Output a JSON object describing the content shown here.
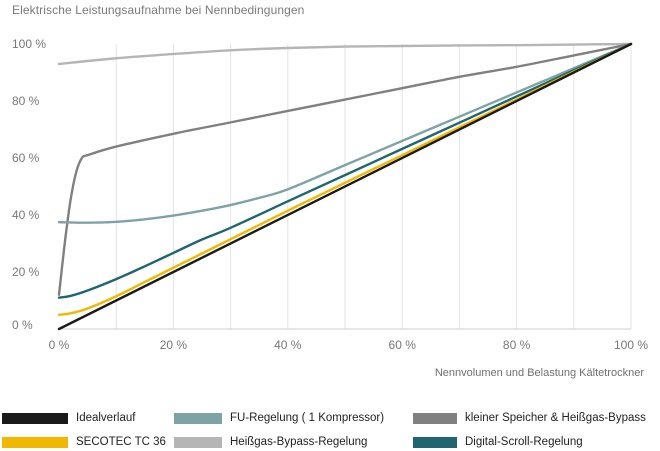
{
  "chart_data": {
    "type": "line",
    "title": "Elektrische Leistungsaufnahme bei Nennbedingungen",
    "xlabel": "Nennvolumen und Belastung Kältetrockner",
    "ylabel": "",
    "xlim": [
      0,
      100
    ],
    "ylim": [
      0,
      100
    ],
    "grid": "vertical",
    "x_ticks": [
      "0 %",
      "20 %",
      "40 %",
      "60 %",
      "80 %",
      "100 %"
    ],
    "y_ticks": [
      "0 %",
      "20 %",
      "40 %",
      "60 %",
      "80 %",
      "100 %"
    ],
    "x_tick_values": [
      0,
      20,
      40,
      60,
      80,
      100
    ],
    "y_tick_values": [
      0,
      20,
      40,
      60,
      80,
      100
    ],
    "series": [
      {
        "name": "Heißgas-Bypass-Regelung",
        "color": "#b5b5b5",
        "x": [
          0,
          10,
          20,
          30,
          40,
          50,
          60,
          70,
          80,
          90,
          100
        ],
        "y": [
          93,
          95,
          96.5,
          97.8,
          98.6,
          99.1,
          99.3,
          99.5,
          99.6,
          99.8,
          100
        ]
      },
      {
        "name": "kleiner Speicher & Heißgas-Bypass",
        "color": "#808080",
        "x": [
          0,
          1,
          2,
          3,
          4,
          5,
          10,
          20,
          30,
          40,
          50,
          60,
          70,
          80,
          90,
          100
        ],
        "y": [
          12,
          30,
          45,
          55,
          60,
          61,
          64,
          68.5,
          72.5,
          76.5,
          80.5,
          84.5,
          88.5,
          92,
          96,
          100
        ]
      },
      {
        "name": "FU-Regelung ( 1 Kompressor)",
        "color": "#7ea3a5",
        "x": [
          0,
          5,
          10,
          15,
          20,
          25,
          30,
          35,
          40,
          50,
          60,
          70,
          80,
          90,
          100
        ],
        "y": [
          37.5,
          37.3,
          37.6,
          38.5,
          39.8,
          41.5,
          43.5,
          46,
          49,
          57.5,
          66,
          74.5,
          83,
          91.5,
          100
        ]
      },
      {
        "name": "Digital-Scroll-Regelung",
        "color": "#1f6670",
        "x": [
          0,
          2,
          5,
          10,
          15,
          20,
          25,
          30,
          40,
          50,
          60,
          70,
          80,
          90,
          100
        ],
        "y": [
          11,
          11.6,
          13.5,
          17.5,
          22,
          26.7,
          31.4,
          35.5,
          44.8,
          54,
          63.2,
          72.4,
          81.6,
          90.8,
          100
        ]
      },
      {
        "name": "SECOTEC TC 36",
        "color": "#f2b800",
        "x": [
          0,
          2,
          5,
          10,
          15,
          20,
          30,
          40,
          50,
          60,
          70,
          80,
          90,
          100
        ],
        "y": [
          5,
          5.5,
          7.2,
          11.5,
          16.5,
          21.5,
          31.5,
          41.5,
          51.3,
          61,
          70.8,
          80.5,
          90.3,
          100
        ]
      },
      {
        "name": "Idealverlauf",
        "color": "#1a1a1a",
        "x": [
          0,
          100
        ],
        "y": [
          0,
          100
        ]
      }
    ]
  },
  "legend": {
    "idealverlauf": "Idealverlauf",
    "secotec": "SECOTEC TC 36",
    "fu": "FU-Regelung ( 1 Kompressor)",
    "heissgas": "Heißgas-Bypass-Regelung",
    "speicher": "kleiner Speicher & Heißgas-Bypass",
    "scroll": "Digital-Scroll-Regelung"
  }
}
